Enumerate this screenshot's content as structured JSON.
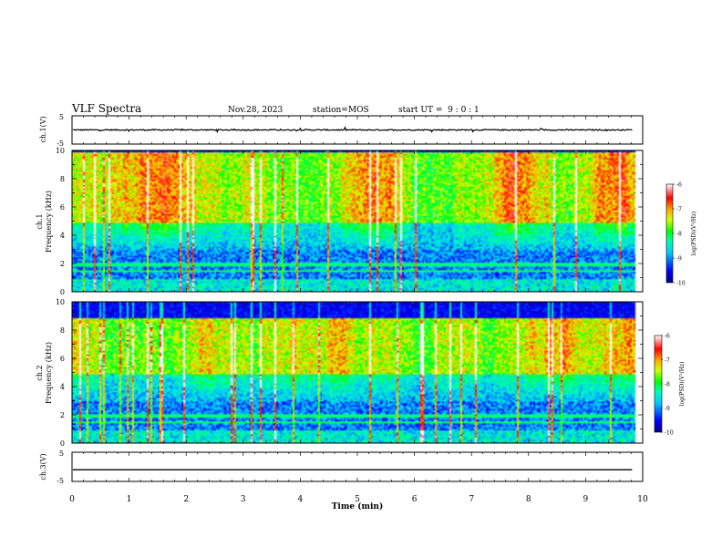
{
  "header": {
    "title": "VLF Spectra",
    "date": "Nov.28, 2023",
    "station": "station=MOS",
    "start": "start UT =  9 : 0 : 1"
  },
  "chart_data": [
    {
      "type": "line",
      "name": "ch1-waveform",
      "ylabel": "ch.1(V)",
      "ylim": [
        -5,
        5
      ],
      "yticks": [
        "5",
        "-5"
      ],
      "xlim": [
        0,
        10
      ],
      "trace_level": 0,
      "noise_amplitude": 0.4
    },
    {
      "type": "heatmap",
      "name": "ch1-spectrogram",
      "ylabel_line1": "ch.1",
      "ylabel_line2": "Frequency (kHz)",
      "ylim": [
        0,
        10
      ],
      "yticks": [
        "0",
        "2",
        "4",
        "6",
        "8",
        "10"
      ],
      "xlim": [
        0,
        10
      ],
      "data_extent_min": 9.85,
      "intense_band_khz": [
        5,
        9.5
      ],
      "colorbar": {
        "label": "log(PSD)(V²/Hz)",
        "range": [
          -10,
          -6
        ],
        "ticks": [
          "-6",
          "-7",
          "-8",
          "-9",
          "-10"
        ]
      }
    },
    {
      "type": "heatmap",
      "name": "ch2-spectrogram",
      "ylabel_line1": "ch.2",
      "ylabel_line2": "Frequency (kHz)",
      "ylim": [
        0,
        10
      ],
      "yticks": [
        "0",
        "2",
        "4",
        "6",
        "8",
        "10"
      ],
      "xlim": [
        0,
        10
      ],
      "data_extent_min": 9.85,
      "intense_band_khz": [
        5,
        8.5
      ],
      "colorbar": {
        "label": "log(PSD)(V²/Hz)",
        "range": [
          -10,
          -6
        ],
        "ticks": [
          "-6",
          "-7",
          "-8",
          "-9",
          "-10"
        ]
      }
    },
    {
      "type": "line",
      "name": "ch3-waveform",
      "ylabel": "ch.3(V)",
      "ylim": [
        -5,
        5
      ],
      "yticks": [
        "5",
        "-5"
      ],
      "xlim": [
        0,
        10
      ],
      "trace_level": -1.0,
      "noise_amplitude": 0.0,
      "xlabel": "Time (min)",
      "xticks": [
        "0",
        "1",
        "2",
        "3",
        "4",
        "5",
        "6",
        "7",
        "8",
        "9",
        "10"
      ]
    }
  ],
  "colors": {
    "axis": "#000000",
    "colormap": [
      "#00008c",
      "#0000ff",
      "#00c8ff",
      "#00ffb4",
      "#00ff00",
      "#d2ff00",
      "#ffaa00",
      "#ff0000",
      "#ffffff"
    ]
  }
}
